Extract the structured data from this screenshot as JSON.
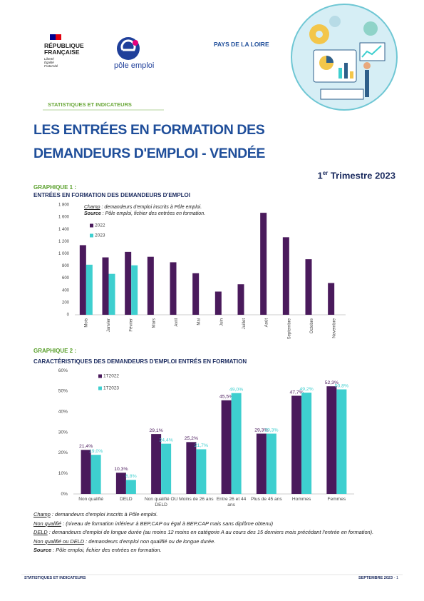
{
  "header": {
    "republique_line1": "RÉPUBLIQUE",
    "republique_line2": "FRANÇAISE",
    "devise": [
      "Liberté",
      "Égalité",
      "Fraternité"
    ],
    "pole_emploi": "pôle emploi",
    "region": "PAYS DE LA LOIRE",
    "section": "STATISTIQUES ET INDICATEURS"
  },
  "title": {
    "line1": "LES ENTRÉES EN FORMATION DES",
    "line2": "DEMANDEURS D'EMPLOI - VENDÉE",
    "period_number": "1",
    "period_suffix": "er",
    "period_rest": "Trimestre 2023"
  },
  "chart_data": [
    {
      "type": "bar",
      "label": "GRAPHIQUE 1 :",
      "title": "ENTRÉES EN FORMATION DES DEMANDEURS D'EMPLOI",
      "annotations": [
        {
          "term": "Champ",
          "text": " : demandeurs d'emploi inscrits à Pôle emploi."
        },
        {
          "term": "Source",
          "text": " : Pôle emploi, fichier des entrées en formation."
        }
      ],
      "categories": [
        "Mois",
        "Janvier",
        "Février",
        "Mars",
        "Avril",
        "Mai",
        "Juin",
        "Juillet",
        "Août",
        "Septembre",
        "Octobre",
        "Novembre"
      ],
      "series": [
        {
          "name": "2022",
          "color": "#4a1a5c",
          "values": [
            1140,
            940,
            1030,
            950,
            860,
            680,
            380,
            500,
            1670,
            1270,
            910,
            520
          ]
        },
        {
          "name": "2023",
          "color": "#3ecfcf",
          "values": [
            820,
            670,
            810,
            null,
            null,
            null,
            null,
            null,
            null,
            null,
            null,
            null
          ]
        }
      ],
      "ylim": [
        0,
        1800
      ],
      "yticks": [
        0,
        200,
        400,
        600,
        800,
        {
          "value": 1000,
          "label": "1 000"
        },
        {
          "value": 1200,
          "label": "1 200"
        },
        {
          "value": 1400,
          "label": "1 400"
        },
        {
          "value": 1600,
          "label": "1 600"
        },
        {
          "value": 1800,
          "label": "1 800"
        }
      ],
      "grid": false
    },
    {
      "type": "bar",
      "label": "GRAPHIQUE 2 :",
      "title": "CARACTÉRISTIQUES DES DEMANDEURS D'EMPLOI ENTRÉS EN FORMATION",
      "categories": [
        "Non qualifié",
        "DELD",
        "Non qualifié OU DELD",
        "Moins de 26 ans",
        "Entre 26 et 44 ans",
        "Plus de 45 ans",
        "Hommes",
        "Femmes"
      ],
      "series": [
        {
          "name": "1T2022",
          "color": "#4a1a5c",
          "values": [
            21.4,
            10.3,
            29.1,
            25.2,
            45.5,
            29.3,
            47.7,
            52.3
          ],
          "value_labels": [
            "21,4%",
            "10,3%",
            "29,1%",
            "25,2%",
            "45,5%",
            "29,3%",
            "47,7%",
            "52,3%"
          ]
        },
        {
          "name": "1T2023",
          "color": "#3ecfcf",
          "values": [
            19.0,
            6.8,
            24.4,
            21.7,
            49.0,
            29.3,
            49.2,
            50.8
          ],
          "value_labels": [
            "19,0%",
            "6,8%",
            "24,4%",
            "21,7%",
            "49,0%",
            "29,3%",
            "49,2%",
            "50,8%"
          ]
        }
      ],
      "ylim": [
        0,
        60
      ],
      "yticks": [
        {
          "value": 0,
          "label": "0%"
        },
        {
          "value": 10,
          "label": "10%"
        },
        {
          "value": 20,
          "label": "20%"
        },
        {
          "value": 30,
          "label": "30%"
        },
        {
          "value": 40,
          "label": "40%"
        },
        {
          "value": 50,
          "label": "50%"
        },
        {
          "value": 60,
          "label": "60%"
        }
      ],
      "grid": false
    }
  ],
  "notes": [
    {
      "term": "Champ",
      "text": " : demandeurs d'emploi inscrits à Pôle emploi."
    },
    {
      "term": "Non qualifié",
      "text": " : (niveau de formation inférieur à BEP,CAP ou égal à BEP,CAP mais sans diplôme obtenu)"
    },
    {
      "term": "DELD",
      "text": " : demandeurs d'emploi de longue durée (au moins 12 moins en catégorie A au cours des 15 derniers mois précédant l'entrée en formation)."
    },
    {
      "term": "Non qualifié ou DELD",
      "text": " : demandeurs d'emploi non qualifié ou de longue durée."
    }
  ],
  "source": {
    "term": "Source",
    "text": " : Pôle emploi, fichier des entrées en formation."
  },
  "footer": {
    "left": "STATISTIQUES ET INDICATEURS",
    "right": "SEPTEMBRE 2023",
    "page": "- 1"
  }
}
